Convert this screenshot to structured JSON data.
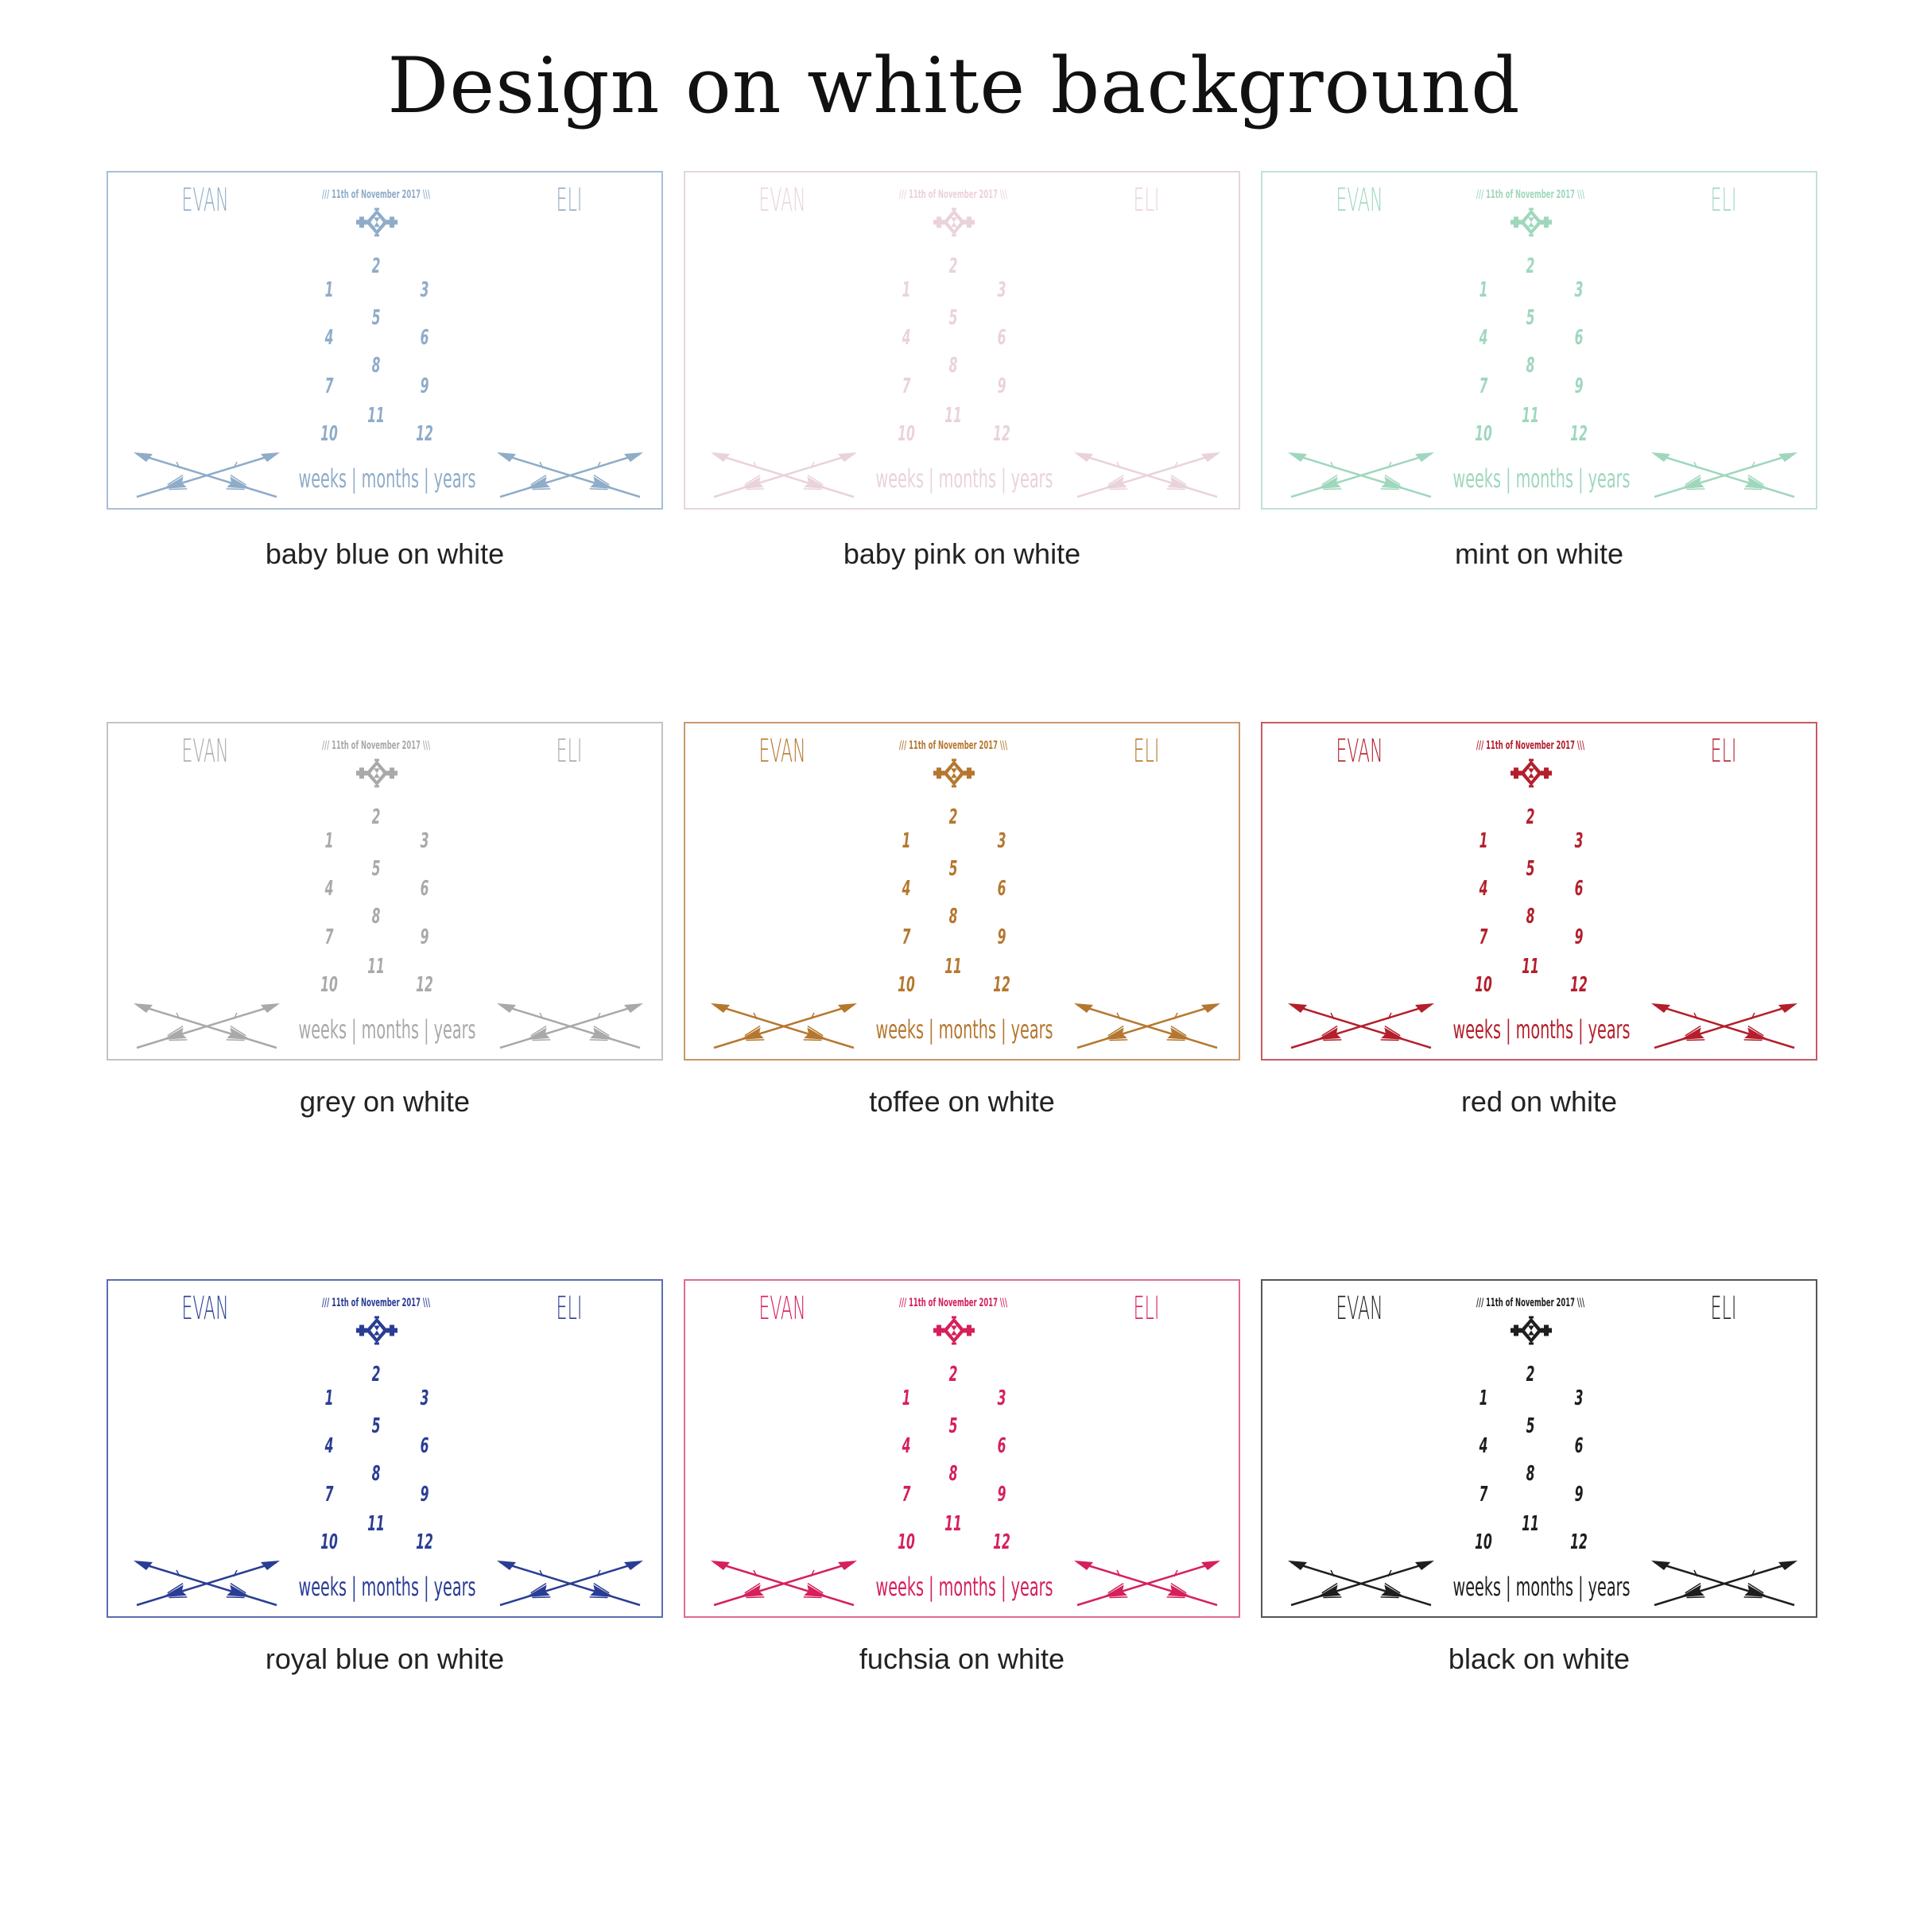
{
  "title": "Design on white background",
  "design": {
    "name_left": "EVAN",
    "name_right": "ELI",
    "date": "/// 11th of November 2017 \\\\\\",
    "numbers": [
      "1",
      "2",
      "3",
      "4",
      "5",
      "6",
      "7",
      "8",
      "9",
      "10",
      "11",
      "12"
    ],
    "units": "weeks | months | years",
    "motif_icon": "aztec-diamond-icon",
    "arrow_icon": "crossed-arrows-icon"
  },
  "variants": [
    {
      "caption": "baby blue on white",
      "color": "#8facc8",
      "border": "#a9bfd4"
    },
    {
      "caption": "baby pink on white",
      "color": "#ead2dc",
      "border": "#e6d6dc"
    },
    {
      "caption": "mint on white",
      "color": "#9fd7bd",
      "border": "#bfe2d2"
    },
    {
      "caption": "grey on white",
      "color": "#a9a9a9",
      "border": "#c4c4c4"
    },
    {
      "caption": "toffee on white",
      "color": "#b5772f",
      "border": "#c9976a"
    },
    {
      "caption": "red on white",
      "color": "#b31f2c",
      "border": "#c85a63"
    },
    {
      "caption": "royal blue on white",
      "color": "#2a3d94",
      "border": "#5d6dae"
    },
    {
      "caption": "fuchsia on white",
      "color": "#d5205a",
      "border": "#dc6d8f"
    },
    {
      "caption": "black on white",
      "color": "#1e1e1e",
      "border": "#555555"
    }
  ]
}
